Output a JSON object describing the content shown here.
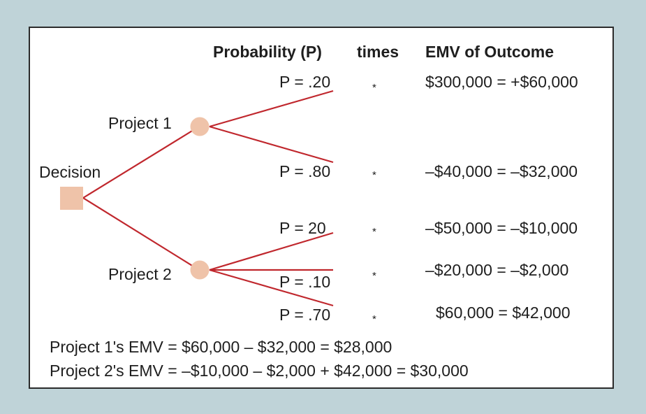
{
  "headers": {
    "probability": "Probability (P)",
    "times": "times",
    "emv_outcome": "EMV of Outcome"
  },
  "tree": {
    "decision_label": "Decision",
    "project1_label": "Project 1",
    "project2_label": "Project 2"
  },
  "outcomes": [
    {
      "prob": "P = .20",
      "times": "*",
      "emv": "$300,000 = +$60,000"
    },
    {
      "prob": "P = .80",
      "times": "*",
      "emv": "–$40,000 = –$32,000"
    },
    {
      "prob": "P = 20",
      "times": "*",
      "emv": "–$50,000 = –$10,000"
    },
    {
      "prob": "P = .10",
      "times": "*",
      "emv": "–$20,000 = –$2,000"
    },
    {
      "prob": "P = .70",
      "times": "*",
      "emv": "$60,000 = $42,000"
    }
  ],
  "summary": {
    "project1": "Project 1's EMV = $60,000 – $32,000 = $28,000",
    "project2": "Project 2's EMV = –$10,000 – $2,000 + $42,000 = $30,000"
  },
  "colors": {
    "branch": "#c0272d",
    "chance_node": "#efc3a9",
    "decision_node": "#efc3a9",
    "outer_background": "#bfd3d8",
    "frame_border": "#2b2b2b"
  }
}
